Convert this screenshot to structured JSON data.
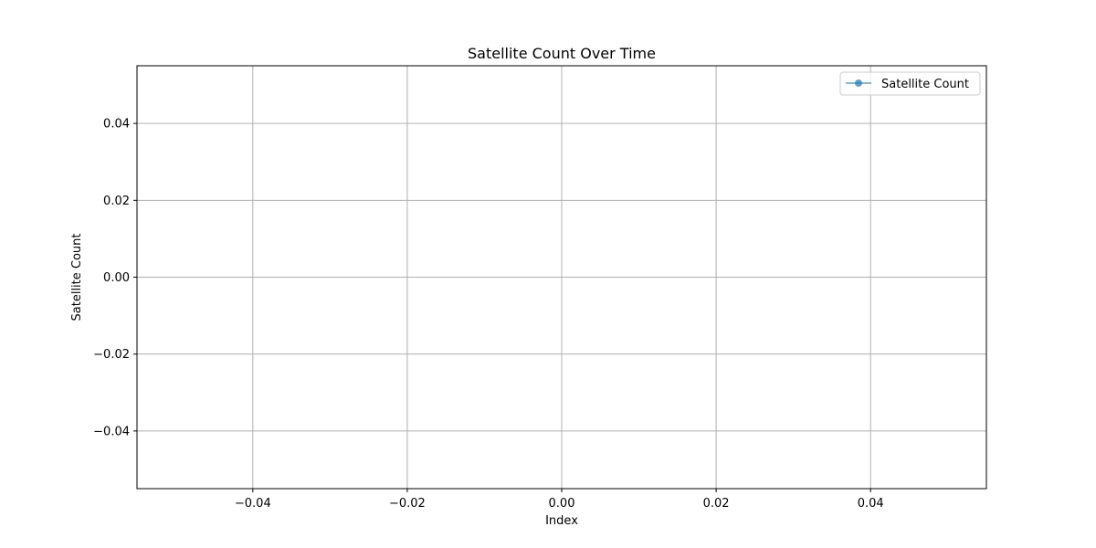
{
  "chart_data": {
    "type": "line",
    "title": "Satellite Count Over Time",
    "xlabel": "Index",
    "ylabel": "Satellite Count",
    "xlim": [
      -0.055,
      0.055
    ],
    "ylim": [
      -0.055,
      0.055
    ],
    "x_ticks": [
      -0.04,
      -0.02,
      0.0,
      0.02,
      0.04
    ],
    "x_tick_labels": [
      "−0.04",
      "−0.02",
      "0.00",
      "0.02",
      "0.04"
    ],
    "y_ticks": [
      0.04,
      0.02,
      0.0,
      -0.02,
      -0.04
    ],
    "y_tick_labels": [
      "0.04",
      "0.02",
      "0.00",
      "−0.02",
      "−0.04"
    ],
    "grid": true,
    "legend_position": "top-right",
    "series": [
      {
        "name": "Satellite Count",
        "color": "#1f77b4",
        "marker": "circle",
        "x": [],
        "y": []
      }
    ]
  }
}
